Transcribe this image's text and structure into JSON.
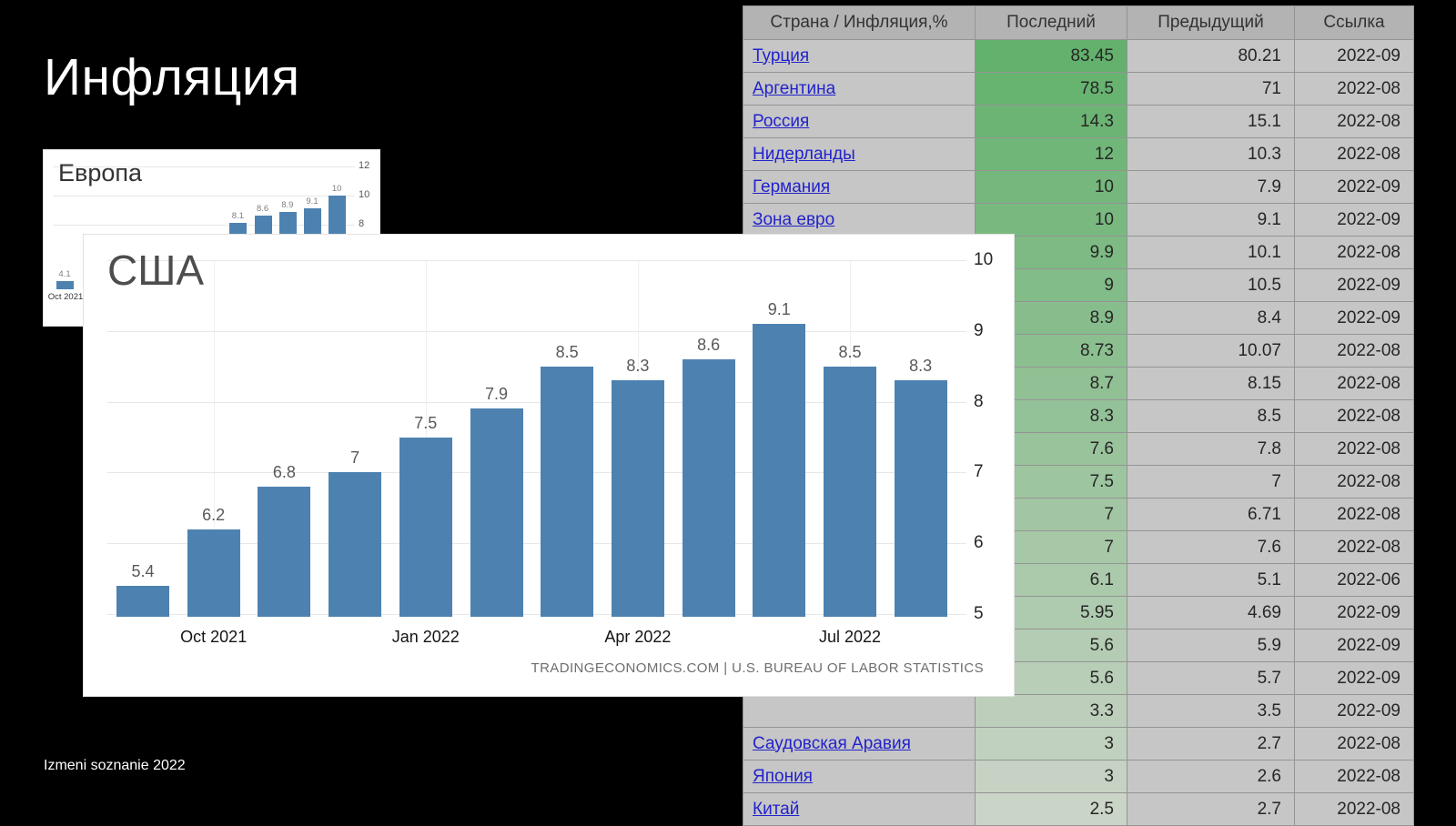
{
  "slide": {
    "title": "Инфляция",
    "footer": "Izmeni soznanie 2022",
    "background_color": "#000000"
  },
  "chart_data": [
    {
      "type": "bar",
      "title": "США",
      "values": [
        5.4,
        6.2,
        6.8,
        7,
        7.5,
        7.9,
        8.5,
        8.3,
        8.6,
        9.1,
        8.5,
        8.3
      ],
      "bar_labels": [
        "5.4",
        "6.2",
        "6.8",
        "7",
        "7.5",
        "7.9",
        "8.5",
        "8.3",
        "8.6",
        "9.1",
        "8.5",
        "8.3"
      ],
      "x_ticks": [
        {
          "index": 1,
          "label": "Oct 2021"
        },
        {
          "index": 4,
          "label": "Jan 2022"
        },
        {
          "index": 7,
          "label": "Apr 2022"
        },
        {
          "index": 10,
          "label": "Jul 2022"
        }
      ],
      "y_ticks": [
        5,
        6,
        7,
        8,
        9,
        10
      ],
      "ylim": [
        4.96,
        10.3
      ],
      "bar_color": "#4d82b0",
      "source": "TRADINGECONOMICS.COM | U.S. BUREAU OF LABOR STATISTICS",
      "legend_position": "none",
      "grid": true
    },
    {
      "type": "bar",
      "title": "Европа",
      "visible_bars": [
        {
          "index": 0,
          "value": 4.1,
          "label": "4.1",
          "x_label": "Oct 2021"
        },
        {
          "index": 7,
          "value": 8.1,
          "label": "8.1"
        },
        {
          "index": 8,
          "value": 8.6,
          "label": "8.6"
        },
        {
          "index": 9,
          "value": 8.9,
          "label": "8.9"
        },
        {
          "index": 10,
          "value": 9.1,
          "label": "9.1"
        },
        {
          "index": 11,
          "value": 10,
          "label": "10"
        }
      ],
      "y_ticks": [
        12,
        10,
        8
      ],
      "bar_color": "#4d82b0",
      "grid": true
    },
    {
      "type": "table",
      "headers": [
        "Страна / Инфляция,%",
        "Последний",
        "Предыдущий",
        "Ссылка"
      ],
      "link_color": "#2222cc",
      "last_col_green_top": "#63b16c",
      "last_col_green_bottom": "#cad4c7",
      "rows": [
        [
          "Турция",
          "83.45",
          "80.21",
          "2022-09"
        ],
        [
          "Аргентина",
          "78.5",
          "71",
          "2022-08"
        ],
        [
          "Россия",
          "14.3",
          "15.1",
          "2022-08"
        ],
        [
          "Нидерланды",
          "12",
          "10.3",
          "2022-08"
        ],
        [
          "Германия",
          "10",
          "7.9",
          "2022-09"
        ],
        [
          "Зона евро",
          "10",
          "9.1",
          "2022-09"
        ],
        [
          "",
          "9.9",
          "10.1",
          "2022-08"
        ],
        [
          "",
          "9",
          "10.5",
          "2022-09"
        ],
        [
          "",
          "8.9",
          "8.4",
          "2022-09"
        ],
        [
          "",
          "8.73",
          "10.07",
          "2022-08"
        ],
        [
          "",
          "8.7",
          "8.15",
          "2022-08"
        ],
        [
          "",
          "8.3",
          "8.5",
          "2022-08"
        ],
        [
          "",
          "7.6",
          "7.8",
          "2022-08"
        ],
        [
          "",
          "7.5",
          "7",
          "2022-08"
        ],
        [
          "",
          "7",
          "6.71",
          "2022-08"
        ],
        [
          "",
          "7",
          "7.6",
          "2022-08"
        ],
        [
          "",
          "6.1",
          "5.1",
          "2022-06"
        ],
        [
          "",
          "5.95",
          "4.69",
          "2022-09"
        ],
        [
          "",
          "5.6",
          "5.9",
          "2022-09"
        ],
        [
          "",
          "5.6",
          "5.7",
          "2022-09"
        ],
        [
          "",
          "3.3",
          "3.5",
          "2022-09"
        ],
        [
          "Саудовская Аравия",
          "3",
          "2.7",
          "2022-08"
        ],
        [
          "Япония",
          "3",
          "2.6",
          "2022-08"
        ],
        [
          "Китай",
          "2.5",
          "2.7",
          "2022-08"
        ]
      ]
    }
  ]
}
